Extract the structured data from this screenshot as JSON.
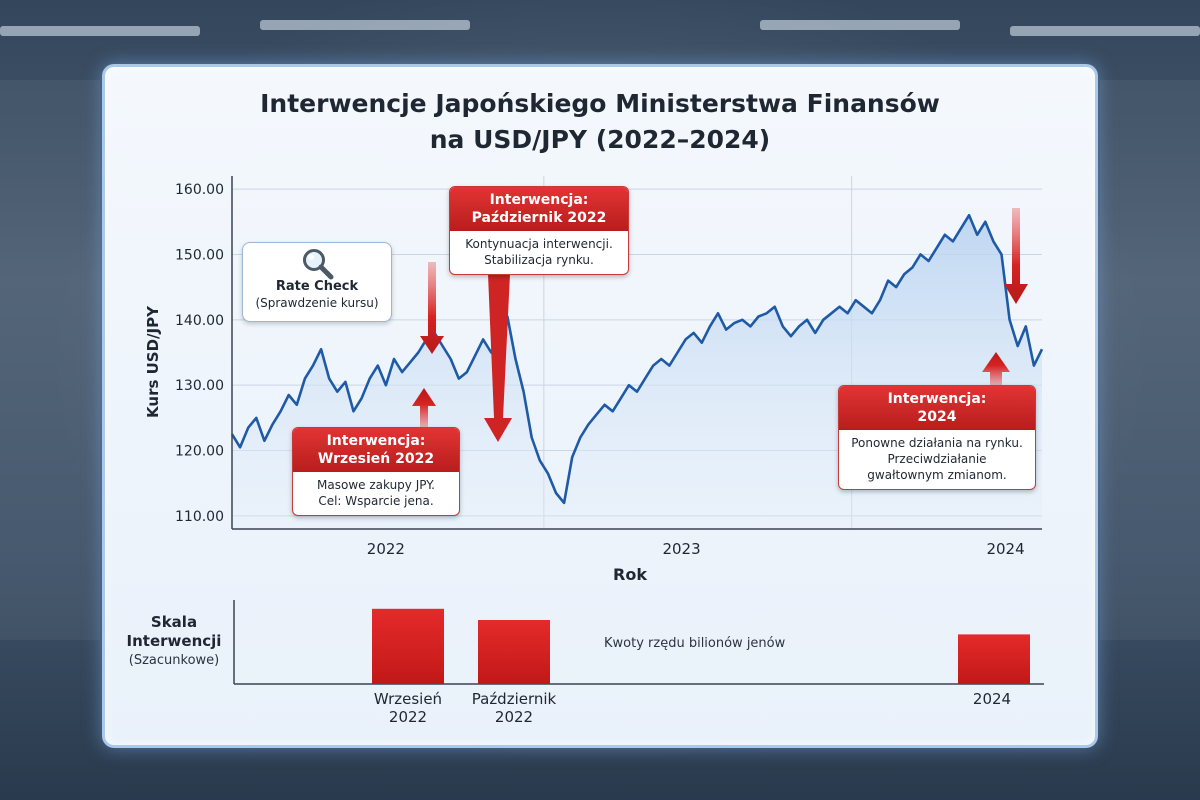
{
  "title": {
    "line1": "Interwencje Japońskiego Ministerstwa Finansów",
    "line2": "na USD/JPY (2022–2024)"
  },
  "chart_data": [
    {
      "type": "line",
      "ylabel": "Kurs USD/JPY",
      "xlabel": "Rok",
      "ylim": [
        108,
        162
      ],
      "yticks": [
        "110.00",
        "120.00",
        "130.00",
        "140.00",
        "150.00",
        "160.00"
      ],
      "xticks": [
        "2022",
        "2023",
        "2024"
      ],
      "grid": true,
      "series": [
        {
          "color": "#1f5aa6",
          "fill": "#cfe0f4",
          "x": [
            0.0,
            0.01,
            0.02,
            0.03,
            0.04,
            0.05,
            0.06,
            0.07,
            0.08,
            0.09,
            0.1,
            0.11,
            0.12,
            0.13,
            0.14,
            0.15,
            0.16,
            0.17,
            0.18,
            0.19,
            0.2,
            0.21,
            0.22,
            0.23,
            0.24,
            0.25,
            0.26,
            0.27,
            0.28,
            0.29,
            0.3,
            0.31,
            0.32,
            0.33,
            0.34,
            0.35,
            0.36,
            0.37,
            0.38,
            0.39,
            0.4,
            0.41,
            0.42,
            0.43,
            0.44,
            0.45,
            0.46,
            0.47,
            0.48,
            0.49,
            0.5,
            0.51,
            0.52,
            0.53,
            0.54,
            0.55,
            0.56,
            0.57,
            0.58,
            0.59,
            0.6,
            0.61,
            0.62,
            0.63,
            0.64,
            0.65,
            0.66,
            0.67,
            0.68,
            0.69,
            0.7,
            0.71,
            0.72,
            0.73,
            0.74,
            0.75,
            0.76,
            0.77,
            0.78,
            0.79,
            0.8,
            0.81,
            0.82,
            0.83,
            0.84,
            0.85,
            0.86,
            0.87,
            0.88,
            0.89,
            0.9,
            0.91,
            0.92,
            0.93,
            0.94,
            0.95,
            0.96,
            0.97,
            0.98,
            0.99,
            1.0
          ],
          "values": [
            122.5,
            120.5,
            123.5,
            125,
            121.5,
            124,
            126,
            128.5,
            127,
            131,
            133,
            135.5,
            131,
            129,
            130.5,
            126,
            128,
            131,
            133,
            130,
            134,
            132,
            133.5,
            135,
            137,
            138,
            136,
            134,
            131,
            132,
            134.5,
            137,
            135,
            138,
            140.5,
            134,
            129,
            122,
            118.5,
            116.5,
            113.5,
            112,
            119,
            122,
            124,
            125.5,
            127,
            126,
            128,
            130,
            129,
            131,
            133,
            134,
            133,
            135,
            137,
            138,
            136.5,
            139,
            141,
            138.5,
            139.5,
            140,
            139,
            140.5,
            141,
            142,
            139,
            137.5,
            139,
            140,
            138,
            140,
            141,
            142,
            141,
            143,
            142,
            141,
            143,
            146,
            145,
            147,
            148,
            150,
            149,
            151,
            153,
            152,
            154,
            156,
            153,
            155,
            152,
            150,
            140,
            136,
            139,
            133,
            135.5
          ]
        }
      ],
      "annotations": [
        {
          "title": [
            "Interwencja:",
            "Wrzesień 2022"
          ],
          "text": [
            "Masowe zakupy JPY.",
            "Cel: Wsparcie jena."
          ]
        },
        {
          "title": [
            "Interwencja:",
            "Październik 2022"
          ],
          "text": [
            "Kontynuacja interwencji.",
            "Stabilizacja rynku."
          ]
        },
        {
          "title": [
            "Interwencja:",
            "2024"
          ],
          "text": [
            "Ponowne działania na rynku.",
            "Przeciwdziałanie",
            "gwałtownym zmianom."
          ]
        }
      ],
      "rate_check": {
        "title": "Rate Check",
        "subtitle": "(Sprawdzenie kursu)",
        "icon": "magnifier-icon"
      }
    },
    {
      "type": "bar",
      "title_line1": "Skala",
      "title_line2": "Interwencji",
      "subtitle": "(Szacunkowe)",
      "note": "Kwoty rzędu bilionów jenów",
      "color": "#d61f1f",
      "categories": [
        [
          "Wrzesień",
          "2022"
        ],
        [
          "Październik",
          "2022"
        ],
        [
          "2024"
        ]
      ],
      "values": [
        0.94,
        0.8,
        0.62
      ]
    }
  ]
}
